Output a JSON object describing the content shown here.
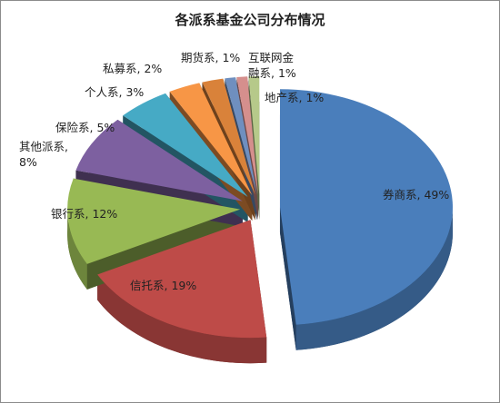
{
  "chart_data": {
    "type": "pie3d",
    "title": "各派系基金公司分布情况",
    "values": [
      49,
      19,
      12,
      8,
      5,
      3,
      2,
      1,
      1,
      1
    ],
    "value_labels": [
      "券商系, 49%",
      "信托系, 19%",
      "银行系, 12%",
      "其他派系,\n8%",
      "保险系, 5%",
      "个人系, 3%",
      "私募系, 2%",
      "期货系, 1%",
      "互联网金\n融系, 1%",
      "地产系, 1%"
    ],
    "colors": [
      "#4a7ebb",
      "#be4b48",
      "#98b954",
      "#7d60a0",
      "#46aac5",
      "#f79646",
      "#d9823a",
      "#6f8fbf",
      "#d58f8d",
      "#b6c98a"
    ]
  }
}
